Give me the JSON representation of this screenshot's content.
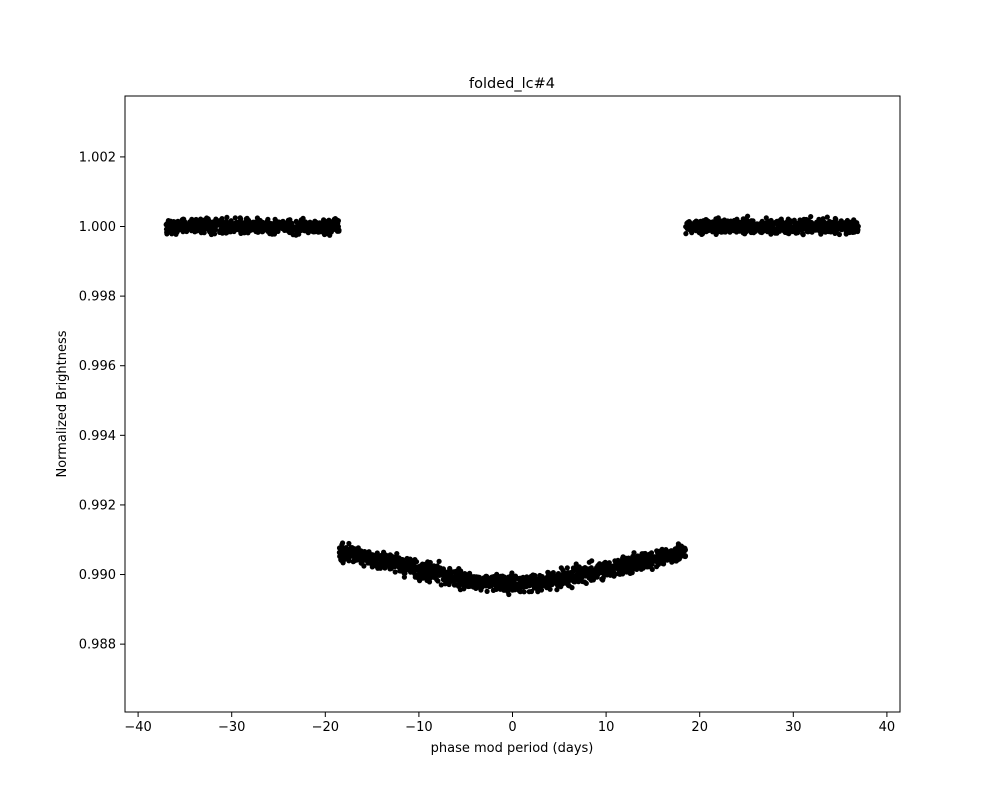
{
  "chart_data": {
    "type": "scatter",
    "title": "folded_lc#4",
    "xlabel": "phase mod period (days)",
    "ylabel": "Normalized Brightness",
    "xlim": [
      -41.4,
      41.4
    ],
    "ylim": [
      0.98605,
      1.00375
    ],
    "xticks": [
      -40,
      -30,
      -20,
      -10,
      0,
      10,
      20,
      30,
      40
    ],
    "xtick_labels": [
      "−40",
      "−30",
      "−20",
      "−10",
      "0",
      "10",
      "20",
      "30",
      "40"
    ],
    "yticks": [
      0.988,
      0.99,
      0.992,
      0.994,
      0.996,
      0.998,
      1.0,
      1.002
    ],
    "ytick_labels": [
      "0.988",
      "0.990",
      "0.992",
      "0.994",
      "0.996",
      "0.998",
      "1.000",
      "1.002"
    ],
    "grid": false,
    "legend": "none",
    "marker_color": "#000000",
    "segments": [
      {
        "x": [
          -37.0,
          -18.5
        ],
        "center": [
          1.0,
          1.0
        ],
        "scatter": 0.00018
      },
      {
        "x": [
          -18.5,
          -15,
          -10,
          -5,
          0,
          5,
          10,
          15,
          18.5
        ],
        "center": [
          0.99065,
          0.99045,
          0.99015,
          0.98985,
          0.9897,
          0.98985,
          0.99015,
          0.99045,
          0.99065
        ],
        "scatter": 0.00022
      },
      {
        "x": [
          18.5,
          37.0
        ],
        "center": [
          1.0,
          1.0
        ],
        "scatter": 0.00018
      }
    ]
  }
}
